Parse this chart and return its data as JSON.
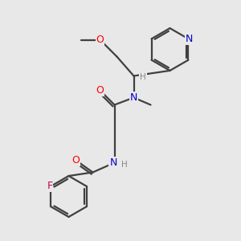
{
  "background_color": "#e8e8e8",
  "bond_color": "#404040",
  "atom_colors": {
    "O": "#ff0000",
    "N": "#0000cc",
    "F": "#cc0055",
    "H_label": "#888888",
    "C": "#404040"
  },
  "figsize": [
    3.0,
    3.0
  ],
  "dpi": 100
}
